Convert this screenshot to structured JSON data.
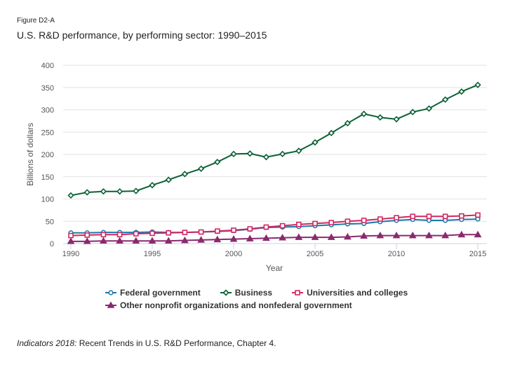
{
  "figure_label": "Figure D2-A",
  "title": "U.S. R&D performance, by performing sector: 1990–2015",
  "source": {
    "italic": "Indicators 2018:",
    "text": " Recent Trends in U.S. R&D Performance, Chapter 4."
  },
  "chart_data": {
    "type": "line",
    "title": "U.S. R&D performance, by performing sector: 1990–2015",
    "xlabel": "Year",
    "ylabel": "Billions of dollars",
    "ylim": [
      0,
      400
    ],
    "xlim": [
      1990,
      2015
    ],
    "yticks": [
      0,
      50,
      100,
      150,
      200,
      250,
      300,
      350,
      400
    ],
    "xticks": [
      1990,
      1995,
      2000,
      2005,
      2010,
      2015
    ],
    "grid": "horizontal",
    "legend_position": "bottom",
    "x": [
      1990,
      1991,
      1992,
      1993,
      1994,
      1995,
      1996,
      1997,
      1998,
      1999,
      2000,
      2001,
      2002,
      2003,
      2004,
      2005,
      2006,
      2007,
      2008,
      2009,
      2010,
      2011,
      2012,
      2013,
      2014,
      2015
    ],
    "series": [
      {
        "name": "Federal government",
        "color": "#1f78a6",
        "marker": "circle",
        "values": [
          24,
          24,
          25,
          25,
          25,
          26,
          25,
          25,
          26,
          27,
          29,
          32,
          36,
          37,
          38,
          40,
          42,
          44,
          45,
          49,
          52,
          54,
          52,
          52,
          54,
          55
        ]
      },
      {
        "name": "Business",
        "color": "#0b6135",
        "marker": "diamond",
        "values": [
          108,
          115,
          117,
          117,
          118,
          131,
          143,
          156,
          168,
          183,
          201,
          202,
          194,
          201,
          208,
          227,
          248,
          270,
          291,
          283,
          279,
          295,
          303,
          323,
          341,
          356
        ]
      },
      {
        "name": "Universities and colleges",
        "color": "#d02763",
        "marker": "square",
        "values": [
          18,
          19,
          20,
          20,
          22,
          23,
          24,
          25,
          26,
          28,
          30,
          33,
          37,
          40,
          43,
          45,
          47,
          50,
          52,
          55,
          58,
          61,
          61,
          61,
          62,
          64
        ]
      },
      {
        "name": "Other nonprofit organizations and nonfederal government",
        "color": "#8a2a6e",
        "marker": "triangle",
        "values": [
          5,
          5,
          6,
          6,
          6,
          6,
          6,
          7,
          8,
          9,
          10,
          11,
          12,
          13,
          14,
          14,
          14,
          15,
          17,
          18,
          18,
          18,
          18,
          18,
          20,
          20
        ]
      }
    ]
  }
}
